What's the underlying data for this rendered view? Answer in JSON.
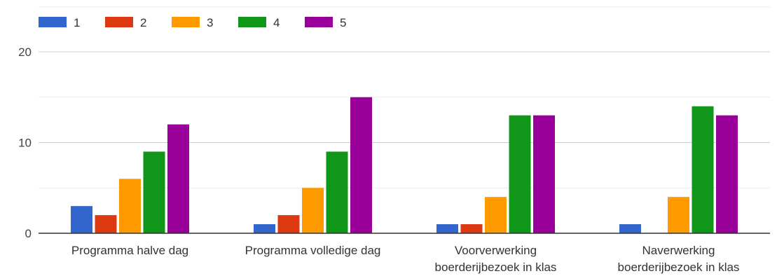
{
  "chart_data": {
    "type": "bar",
    "categories": [
      [
        "Programma halve dag"
      ],
      [
        "Programma volledige dag"
      ],
      [
        "Voorverwerking",
        "boerderijbezoek in klas"
      ],
      [
        "Naverwerking",
        "boerderijbezoek in klas"
      ]
    ],
    "series": [
      {
        "name": "1",
        "color": "#3366cc",
        "values": [
          3,
          1,
          1,
          1
        ]
      },
      {
        "name": "2",
        "color": "#dc3912",
        "values": [
          2,
          2,
          1,
          0
        ]
      },
      {
        "name": "3",
        "color": "#ff9900",
        "values": [
          6,
          5,
          4,
          4
        ]
      },
      {
        "name": "4",
        "color": "#109618",
        "values": [
          9,
          9,
          13,
          14
        ]
      },
      {
        "name": "5",
        "color": "#990099",
        "values": [
          12,
          15,
          13,
          13
        ]
      }
    ],
    "y_ticks": [
      0,
      10,
      20
    ],
    "ylim": [
      0,
      24
    ],
    "grid": true,
    "legend_position": "top-left",
    "title": "",
    "xlabel": "",
    "ylabel": ""
  }
}
